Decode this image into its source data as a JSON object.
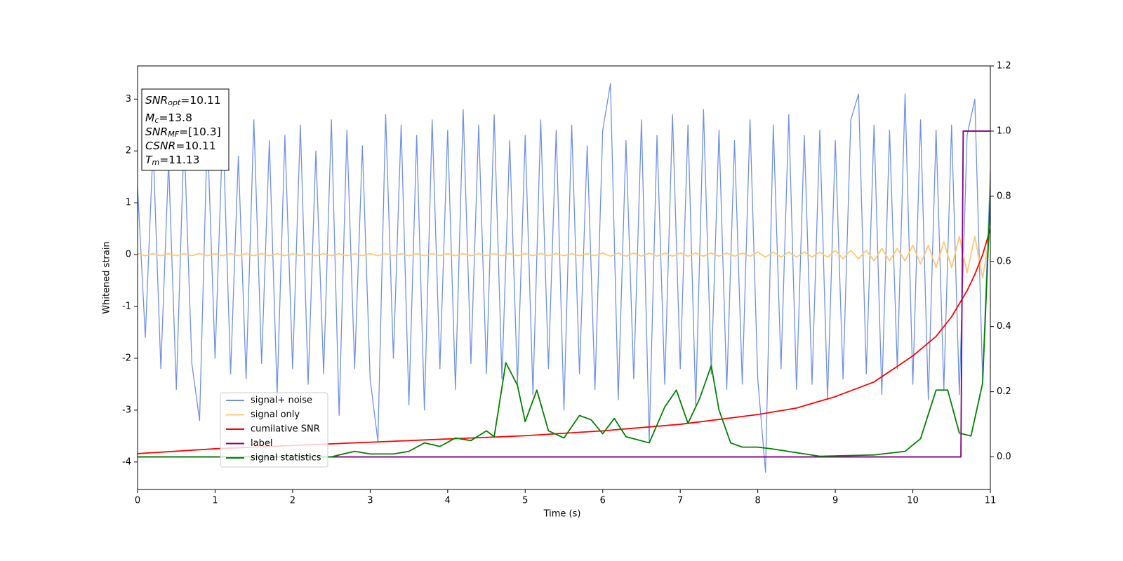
{
  "chart_data": {
    "type": "line",
    "xlabel": "Time (s)",
    "ylabel": "Whitened strain",
    "xlim": [
      0,
      11
    ],
    "ylim": [
      -4.53,
      3.64
    ],
    "y2lim": [
      -0.1,
      1.2
    ],
    "xticks": [
      0,
      1,
      2,
      3,
      4,
      5,
      6,
      7,
      8,
      9,
      10,
      11
    ],
    "yticks": [
      -4,
      -3,
      -2,
      -1,
      0,
      1,
      2,
      3
    ],
    "y2ticks": [
      {
        "value": 0,
        "label": "0.0"
      },
      {
        "value": 0.2,
        "label": "0.2"
      },
      {
        "value": 0.4,
        "label": "0.4"
      },
      {
        "value": 0.6,
        "label": "0.6"
      },
      {
        "value": 0.8,
        "label": "0.8"
      },
      {
        "value": 1,
        "label": "1.0"
      },
      {
        "value": 1.2,
        "label": "1.2"
      }
    ],
    "annotations": [
      {
        "symbol": "SNR",
        "subscript": "opt",
        "value": "=10.11"
      },
      {
        "symbol": "M",
        "subscript": "c",
        "value": "=13.8"
      },
      {
        "symbol": "SNR",
        "subscript": "MF",
        "value": "=[10.3]"
      },
      {
        "symbol": "CSNR",
        "value": "=10.11"
      },
      {
        "symbol": "T",
        "subscript": "m",
        "value": "=11.13"
      }
    ],
    "legend": "lower left",
    "series": [
      {
        "name": "signal+ noise",
        "color": "#7090e6",
        "x": [
          0,
          0.1,
          0.2,
          0.3,
          0.4,
          0.5,
          0.6,
          0.7,
          0.8,
          0.9,
          1,
          1.1,
          1.2,
          1.3,
          1.4,
          1.5,
          1.6,
          1.7,
          1.8,
          1.9,
          2,
          2.1,
          2.2,
          2.3,
          2.4,
          2.5,
          2.6,
          2.7,
          2.8,
          2.9,
          3,
          3.1,
          3.2,
          3.3,
          3.4,
          3.5,
          3.6,
          3.7,
          3.8,
          3.9,
          4,
          4.1,
          4.2,
          4.3,
          4.4,
          4.5,
          4.6,
          4.7,
          4.8,
          4.9,
          5,
          5.1,
          5.2,
          5.3,
          5.4,
          5.5,
          5.6,
          5.7,
          5.8,
          5.9,
          6,
          6.1,
          6.2,
          6.3,
          6.4,
          6.5,
          6.6,
          6.7,
          6.8,
          6.9,
          7,
          7.1,
          7.2,
          7.3,
          7.4,
          7.5,
          7.6,
          7.7,
          7.8,
          7.9,
          8,
          8.1,
          8.2,
          8.3,
          8.4,
          8.5,
          8.6,
          8.7,
          8.8,
          8.9,
          9,
          9.1,
          9.2,
          9.3,
          9.4,
          9.5,
          9.6,
          9.7,
          9.8,
          9.9,
          10,
          10.1,
          10.2,
          10.3,
          10.4,
          10.5,
          10.6,
          10.7,
          10.8,
          10.9,
          11
        ],
        "values": [
          1.3,
          -1.6,
          2.1,
          -2.2,
          1.8,
          -2.6,
          2.3,
          -2.1,
          -3.2,
          2.4,
          -2.0,
          2.5,
          -2.3,
          1.9,
          -2.4,
          2.6,
          -2.1,
          2.2,
          -2.7,
          2.3,
          -2.2,
          2.5,
          -2.5,
          2.0,
          -2.3,
          2.6,
          -3.1,
          2.4,
          -2.2,
          2.1,
          -2.4,
          -3.6,
          2.7,
          -2.0,
          2.5,
          -2.9,
          2.3,
          -3.0,
          2.6,
          -2.2,
          2.4,
          -2.6,
          2.8,
          -2.1,
          2.5,
          -2.3,
          2.7,
          -2.4,
          2.2,
          -2.5,
          2.3,
          -2.7,
          2.6,
          -2.2,
          2.4,
          -3.0,
          2.5,
          -2.3,
          2.1,
          -2.6,
          2.4,
          3.3,
          -2.8,
          2.2,
          -2.4,
          2.6,
          -3.6,
          2.3,
          -2.5,
          2.7,
          -2.2,
          2.5,
          -2.9,
          2.8,
          -2.3,
          2.4,
          -2.6,
          2.2,
          -2.5,
          2.6,
          -2.4,
          -4.2,
          2.5,
          -2.2,
          2.7,
          -2.6,
          2.3,
          -2.5,
          2.4,
          -2.8,
          2.2,
          -2.4,
          2.6,
          3.1,
          -2.3,
          2.5,
          -2.7,
          2.4,
          -2.2,
          3.1,
          -2.5,
          2.6,
          -2.8,
          2.4,
          -2.6,
          2.5,
          -2.7,
          2.3,
          3.0,
          -2.4,
          1.6
        ]
      },
      {
        "name": "signal only",
        "color": "#ffc870",
        "x": [
          0,
          0.1,
          0.2,
          0.3,
          0.4,
          0.5,
          0.6,
          0.7,
          0.8,
          0.9,
          1,
          1.1,
          1.2,
          1.3,
          1.4,
          1.5,
          1.6,
          1.7,
          1.8,
          1.9,
          2,
          2.1,
          2.2,
          2.3,
          2.4,
          2.5,
          2.6,
          2.7,
          2.8,
          2.9,
          3,
          3.1,
          3.2,
          3.3,
          3.4,
          3.5,
          3.6,
          3.7,
          3.8,
          3.9,
          4,
          4.1,
          4.2,
          4.3,
          4.4,
          4.5,
          4.6,
          4.7,
          4.8,
          4.9,
          5,
          5.1,
          5.2,
          5.3,
          5.4,
          5.5,
          5.6,
          5.7,
          5.8,
          5.9,
          6,
          6.1,
          6.2,
          6.3,
          6.4,
          6.5,
          6.6,
          6.7,
          6.8,
          6.9,
          7,
          7.1,
          7.2,
          7.3,
          7.4,
          7.5,
          7.6,
          7.7,
          7.8,
          7.9,
          8,
          8.1,
          8.2,
          8.3,
          8.4,
          8.5,
          8.6,
          8.7,
          8.8,
          8.9,
          9,
          9.1,
          9.2,
          9.3,
          9.4,
          9.5,
          9.6,
          9.7,
          9.8,
          9.9,
          10,
          10.1,
          10.2,
          10.3,
          10.4,
          10.5,
          10.6,
          10.7,
          10.8,
          10.9,
          11
        ],
        "values": [
          0.02,
          -0.02,
          0.02,
          -0.02,
          0.02,
          -0.02,
          0.02,
          -0.02,
          0.02,
          -0.02,
          0.02,
          -0.02,
          0.02,
          -0.02,
          0.02,
          -0.02,
          0.02,
          -0.02,
          0.02,
          -0.02,
          0.02,
          -0.02,
          0.02,
          -0.02,
          0.02,
          -0.02,
          0.02,
          -0.02,
          0.02,
          -0.02,
          0.02,
          -0.02,
          0.02,
          -0.02,
          0.02,
          -0.02,
          0.02,
          -0.02,
          0.02,
          -0.02,
          0.02,
          -0.02,
          0.02,
          -0.02,
          0.02,
          -0.02,
          0.02,
          -0.02,
          0.02,
          -0.02,
          0.02,
          -0.02,
          0.02,
          -0.02,
          0.02,
          -0.02,
          0.02,
          -0.02,
          0.02,
          -0.02,
          0.03,
          -0.03,
          0.03,
          -0.03,
          0.03,
          -0.03,
          0.03,
          -0.03,
          0.03,
          -0.03,
          0.03,
          -0.03,
          0.03,
          -0.03,
          0.03,
          -0.03,
          0.03,
          -0.03,
          0.03,
          -0.03,
          0.05,
          -0.05,
          0.05,
          -0.05,
          0.05,
          -0.05,
          0.05,
          -0.05,
          0.05,
          -0.05,
          0.08,
          -0.08,
          0.08,
          -0.08,
          0.08,
          -0.12,
          0.12,
          -0.12,
          0.12,
          -0.12,
          0.18,
          -0.18,
          0.18,
          -0.25,
          0.25,
          -0.25,
          0.35,
          -0.35,
          0.35,
          -0.45,
          0.45
        ]
      },
      {
        "name": "cumilative SNR",
        "color": "#ff0000",
        "axis": "y2",
        "x": [
          0,
          1,
          2,
          3,
          4,
          5,
          6,
          7,
          8,
          8.5,
          9,
          9.5,
          10,
          10.3,
          10.5,
          10.7,
          10.8,
          10.9,
          11
        ],
        "values": [
          0.01,
          0.025,
          0.035,
          0.045,
          0.055,
          0.065,
          0.08,
          0.1,
          0.13,
          0.15,
          0.185,
          0.23,
          0.31,
          0.37,
          0.43,
          0.51,
          0.56,
          0.62,
          0.7
        ]
      },
      {
        "name": "label",
        "color": "#800080",
        "axis": "y2",
        "x": [
          0,
          10.62,
          10.65,
          11
        ],
        "values": [
          0,
          0,
          1,
          1
        ]
      },
      {
        "name": "signal statistics",
        "color": "#008000",
        "axis": "y2",
        "x": [
          0,
          2.5,
          2.6,
          2.8,
          3,
          3.3,
          3.5,
          3.7,
          3.9,
          4.1,
          4.3,
          4.5,
          4.6,
          4.75,
          4.9,
          5,
          5.15,
          5.3,
          5.5,
          5.7,
          5.85,
          6,
          6.15,
          6.3,
          6.6,
          6.8,
          6.95,
          7.1,
          7.25,
          7.4,
          7.5,
          7.65,
          7.8,
          8,
          8.2,
          8.5,
          8.8,
          9.5,
          9.9,
          10.1,
          10.3,
          10.45,
          10.6,
          10.75,
          10.9,
          11
        ],
        "values": [
          0,
          0,
          0.006,
          0.017,
          0.009,
          0.009,
          0.017,
          0.043,
          0.032,
          0.058,
          0.05,
          0.08,
          0.062,
          0.289,
          0.22,
          0.108,
          0.205,
          0.08,
          0.058,
          0.127,
          0.114,
          0.071,
          0.118,
          0.062,
          0.043,
          0.153,
          0.205,
          0.103,
          0.179,
          0.28,
          0.144,
          0.043,
          0.03,
          0.03,
          0.024,
          0.013,
          0.002,
          0.006,
          0.017,
          0.056,
          0.205,
          0.205,
          0.073,
          0.064,
          0.226,
          0.8
        ]
      }
    ]
  }
}
